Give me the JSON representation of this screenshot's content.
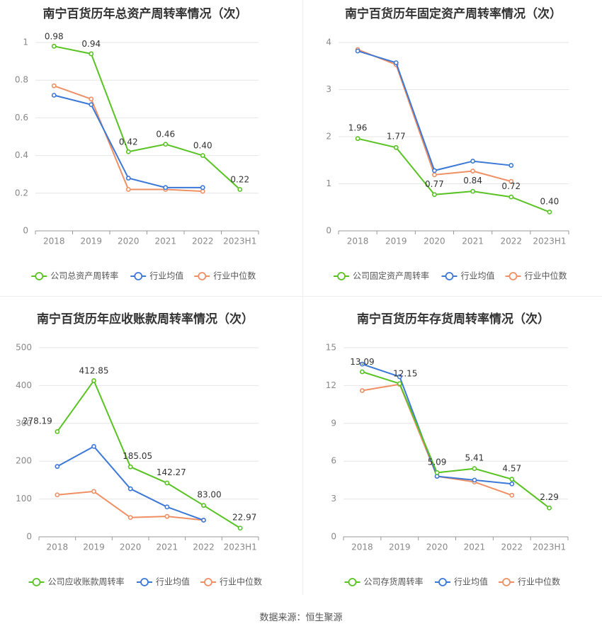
{
  "colors": {
    "company": "#58c322",
    "avg": "#3b78d8",
    "median": "#ef8f64"
  },
  "source": "数据来源：恒生聚源",
  "chart_data": [
    {
      "type": "line",
      "title": "南宁百货历年总资产周转率情况（次）",
      "categories": [
        "2018",
        "2019",
        "2020",
        "2021",
        "2022",
        "2023H1"
      ],
      "ylim": [
        0,
        1.0
      ],
      "yticks": [
        "0",
        "0.2",
        "0.4",
        "0.6",
        "0.8",
        "1"
      ],
      "ytick_values": [
        0,
        0.2,
        0.4,
        0.6,
        0.8,
        1.0
      ],
      "grid": true,
      "legend": "bottom",
      "series": [
        {
          "name": "公司总资产周转率",
          "key": "company",
          "values": [
            0.98,
            0.94,
            0.42,
            0.46,
            0.4,
            0.22
          ],
          "labels": [
            "0.98",
            "0.94",
            "0.42",
            "0.46",
            "0.40",
            "0.22"
          ]
        },
        {
          "name": "行业均值",
          "key": "avg",
          "values": [
            0.72,
            0.67,
            0.28,
            0.23,
            0.23,
            null
          ]
        },
        {
          "name": "行业中位数",
          "key": "median",
          "values": [
            0.77,
            0.7,
            0.22,
            0.22,
            0.21,
            null
          ]
        }
      ]
    },
    {
      "type": "line",
      "title": "南宁百货历年固定资产周转率情况（次）",
      "categories": [
        "2018",
        "2019",
        "2020",
        "2021",
        "2022",
        "2023H1"
      ],
      "ylim": [
        0,
        4
      ],
      "yticks": [
        "0",
        "1",
        "2",
        "3",
        "4"
      ],
      "ytick_values": [
        0,
        1,
        2,
        3,
        4
      ],
      "grid": true,
      "legend": "bottom",
      "series": [
        {
          "name": "公司固定资产周转率",
          "key": "company",
          "values": [
            1.96,
            1.77,
            0.77,
            0.84,
            0.72,
            0.4
          ],
          "labels": [
            "1.96",
            "1.77",
            "0.77",
            "0.84",
            "0.72",
            "0.40"
          ]
        },
        {
          "name": "行业均值",
          "key": "avg",
          "values": [
            3.82,
            3.57,
            1.28,
            1.48,
            1.39,
            null
          ]
        },
        {
          "name": "行业中位数",
          "key": "median",
          "values": [
            3.85,
            3.53,
            1.19,
            1.27,
            1.05,
            null
          ]
        }
      ]
    },
    {
      "type": "line",
      "title": "南宁百货历年应收账款周转率情况（次）",
      "categories": [
        "2018",
        "2019",
        "2020",
        "2021",
        "2022",
        "2023H1"
      ],
      "ylim": [
        0,
        500
      ],
      "yticks": [
        "0",
        "100",
        "200",
        "300",
        "400",
        "500"
      ],
      "ytick_values": [
        0,
        100,
        200,
        300,
        400,
        500
      ],
      "grid": true,
      "legend": "bottom",
      "series": [
        {
          "name": "公司应收账款周转率",
          "key": "company",
          "values": [
            278.19,
            412.85,
            185.05,
            142.27,
            83.0,
            22.97
          ],
          "labels": [
            "278.19",
            "412.85",
            "185.05",
            "142.27",
            "83.00",
            "22.97"
          ]
        },
        {
          "name": "行业均值",
          "key": "avg",
          "values": [
            186,
            239,
            127,
            79,
            44,
            null
          ]
        },
        {
          "name": "行业中位数",
          "key": "median",
          "values": [
            111,
            120,
            51,
            54,
            44,
            null
          ]
        }
      ]
    },
    {
      "type": "line",
      "title": "南宁百货历年存货周转率情况（次）",
      "categories": [
        "2018",
        "2019",
        "2020",
        "2021",
        "2022",
        "2023H1"
      ],
      "ylim": [
        0,
        15
      ],
      "yticks": [
        "0",
        "3",
        "6",
        "9",
        "12",
        "15"
      ],
      "ytick_values": [
        0,
        3,
        6,
        9,
        12,
        15
      ],
      "grid": true,
      "legend": "bottom",
      "series": [
        {
          "name": "公司存货周转率",
          "key": "company",
          "values": [
            13.09,
            12.15,
            5.09,
            5.41,
            4.57,
            2.29
          ],
          "labels": [
            "13.09",
            "12.15",
            "5.09",
            "5.41",
            "4.57",
            "2.29"
          ]
        },
        {
          "name": "行业均值",
          "key": "avg",
          "values": [
            13.7,
            12.7,
            4.8,
            4.5,
            4.2,
            null
          ]
        },
        {
          "name": "行业中位数",
          "key": "median",
          "values": [
            11.6,
            12.1,
            4.8,
            4.35,
            3.3,
            null
          ]
        }
      ]
    }
  ]
}
